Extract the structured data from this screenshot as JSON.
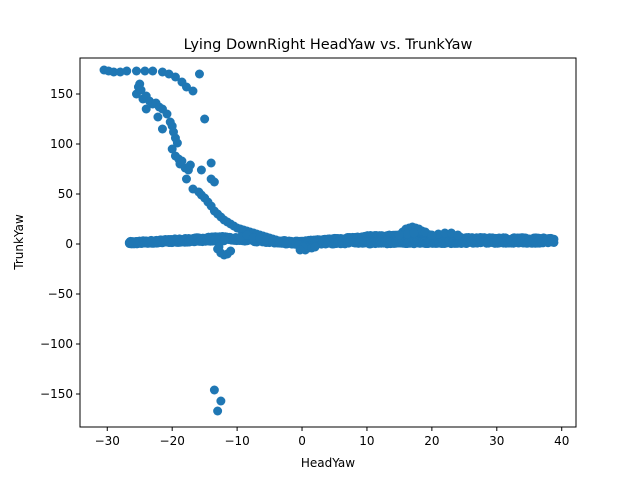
{
  "chart_data": {
    "type": "scatter",
    "title": "Lying DownRight HeadYaw vs. TrunkYaw",
    "xlabel": "HeadYaw",
    "ylabel": "TrunkYaw",
    "xlim": [
      -34.2,
      42.2
    ],
    "ylim": [
      -183,
      186
    ],
    "xticks": [
      -30,
      -20,
      -10,
      0,
      10,
      20,
      30,
      40
    ],
    "yticks": [
      -150,
      -100,
      -50,
      0,
      50,
      100,
      150
    ],
    "xtick_labels": [
      "−30",
      "−20",
      "−10",
      "0",
      "10",
      "20",
      "30",
      "40"
    ],
    "ytick_labels": [
      "−150",
      "−100",
      "−50",
      "0",
      "50",
      "100",
      "150"
    ],
    "grid": false,
    "marker_color": "#1f77b4",
    "series": [
      {
        "points": [
          [
            -30.5,
            174
          ],
          [
            -29.8,
            173
          ],
          [
            -29.0,
            172
          ],
          [
            -28.0,
            172
          ],
          [
            -27.0,
            173
          ],
          [
            -25.5,
            173
          ],
          [
            -24.2,
            173
          ],
          [
            -23.0,
            173
          ],
          [
            -21.5,
            172
          ],
          [
            -20.5,
            170
          ],
          [
            -19.5,
            167
          ],
          [
            -18.5,
            162
          ],
          [
            -17.8,
            157
          ],
          [
            -16.8,
            153
          ],
          [
            -15.8,
            170
          ],
          [
            -25.5,
            150
          ],
          [
            -25.2,
            157
          ],
          [
            -25.0,
            160
          ],
          [
            -24.8,
            154
          ],
          [
            -24.5,
            145
          ],
          [
            -24.0,
            148
          ],
          [
            -23.5,
            143
          ],
          [
            -23.0,
            140
          ],
          [
            -22.5,
            141
          ],
          [
            -22.0,
            137
          ],
          [
            -21.5,
            135
          ],
          [
            -20.8,
            130
          ],
          [
            -24.0,
            135
          ],
          [
            -22.2,
            127
          ],
          [
            -21.5,
            115
          ],
          [
            -20.3,
            122
          ],
          [
            -20.0,
            118
          ],
          [
            -19.8,
            112
          ],
          [
            -19.5,
            106
          ],
          [
            -19.2,
            101
          ],
          [
            -20.0,
            95
          ],
          [
            -19.5,
            88
          ],
          [
            -19.0,
            85
          ],
          [
            -18.8,
            80
          ],
          [
            -18.5,
            83
          ],
          [
            -18.0,
            76
          ],
          [
            -17.5,
            74
          ],
          [
            -17.2,
            79
          ],
          [
            -17.8,
            65
          ],
          [
            -16.8,
            55
          ],
          [
            -15.9,
            52
          ],
          [
            -15.5,
            49
          ],
          [
            -15.0,
            46
          ],
          [
            -14.5,
            42
          ],
          [
            -14.0,
            38
          ],
          [
            -13.5,
            33
          ],
          [
            -13.0,
            30
          ],
          [
            -12.5,
            27
          ],
          [
            -12.0,
            24
          ],
          [
            -11.5,
            22
          ],
          [
            -11.0,
            20
          ],
          [
            -15.0,
            125
          ],
          [
            -14.0,
            81
          ],
          [
            -14.0,
            65
          ],
          [
            -13.5,
            62
          ],
          [
            -15.5,
            74
          ],
          [
            -13.5,
            -146
          ],
          [
            -12.5,
            -157
          ],
          [
            -13.0,
            -167
          ],
          [
            -13.0,
            -5
          ],
          [
            -12.5,
            -9
          ],
          [
            -12.0,
            -11
          ],
          [
            -11.5,
            -10
          ],
          [
            -11.0,
            -7
          ],
          [
            -12.8,
            -3
          ],
          [
            -10.5,
            18
          ],
          [
            -10.0,
            16
          ],
          [
            -9.5,
            15
          ],
          [
            -9.0,
            14
          ],
          [
            -8.5,
            13
          ],
          [
            -8.0,
            12
          ],
          [
            -7.5,
            11
          ],
          [
            -7.0,
            10
          ],
          [
            -6.5,
            9
          ],
          [
            -6.0,
            8
          ],
          [
            -5.5,
            7
          ],
          [
            -5.0,
            6
          ],
          [
            -4.5,
            5
          ],
          [
            -4.0,
            4
          ],
          [
            -3.5,
            3
          ],
          [
            -3.0,
            3
          ],
          [
            -2.5,
            2
          ],
          [
            -2.0,
            2
          ],
          [
            -1.5,
            1
          ],
          [
            -1.0,
            0
          ],
          [
            -0.5,
            -1
          ],
          [
            -9.5,
            7
          ],
          [
            -8.5,
            9
          ],
          [
            -7.5,
            6
          ],
          [
            -6.5,
            6
          ],
          [
            -5.5,
            4
          ],
          [
            -4.5,
            3
          ],
          [
            -3.5,
            1
          ],
          [
            -2.5,
            0
          ],
          [
            0.0,
            -5
          ],
          [
            0.5,
            -6
          ],
          [
            1.0,
            -4
          ],
          [
            0.2,
            -3
          ],
          [
            1.5,
            -4
          ],
          [
            2.0,
            -3
          ],
          [
            -0.3,
            -6
          ],
          [
            15.5,
            12
          ],
          [
            16.0,
            15
          ],
          [
            16.5,
            16
          ],
          [
            17.0,
            17
          ],
          [
            17.5,
            16
          ],
          [
            18.0,
            15
          ],
          [
            18.5,
            13
          ],
          [
            19.0,
            12
          ],
          [
            16.2,
            10
          ],
          [
            17.2,
            11
          ],
          [
            15.0,
            9
          ],
          [
            21.0,
            10
          ],
          [
            22.0,
            11
          ],
          [
            23.0,
            11
          ],
          [
            24.0,
            9
          ],
          [
            20.0,
            9
          ]
        ],
        "bands": [
          {
            "x_start": -26.6,
            "x_end": -12.5,
            "y_start": 1,
            "y_end": 6,
            "count": 240,
            "spread": 1.6
          },
          {
            "x_start": -12.5,
            "x_end": 0,
            "y_start": 6,
            "y_end": 1,
            "count": 170,
            "spread": 1.8
          },
          {
            "x_start": -26.6,
            "x_end": -12,
            "y_start": 1,
            "y_end": 4,
            "count": 150,
            "spread": 1.0
          },
          {
            "x_start": 0,
            "x_end": 10,
            "y_start": 1,
            "y_end": 6,
            "count": 250,
            "spread": 2.2
          },
          {
            "x_start": 10,
            "x_end": 20,
            "y_start": 6,
            "y_end": 7,
            "count": 260,
            "spread": 2.6
          },
          {
            "x_start": 20,
            "x_end": 38.8,
            "y_start": 5,
            "y_end": 4,
            "count": 320,
            "spread": 2.0
          },
          {
            "x_start": 0,
            "x_end": 38.8,
            "y_start": 1,
            "y_end": 2,
            "count": 300,
            "spread": 1.2
          }
        ]
      }
    ]
  }
}
